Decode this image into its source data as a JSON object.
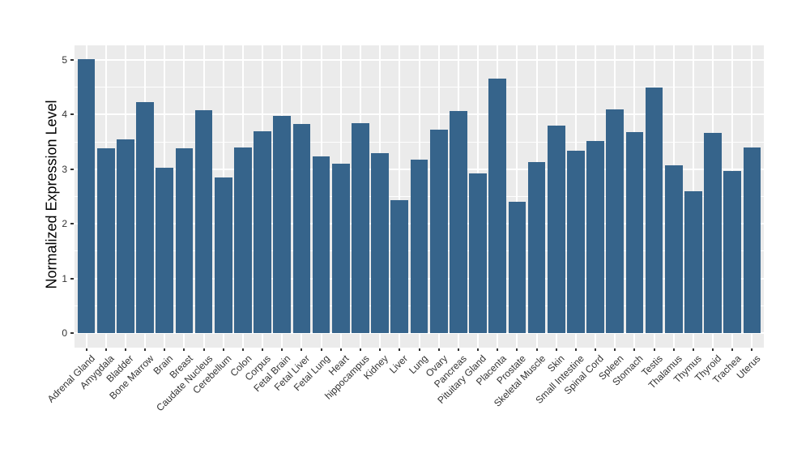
{
  "figure": {
    "background": "#FFFFFF",
    "panel_background": "#EBEBEB",
    "gridline_color": "#FFFFFF",
    "bar_color": "#36648B",
    "tick_mark_color": "#333333",
    "axis_text_color": "#333333",
    "axis_title_color": "#000000"
  },
  "chart_data": {
    "type": "bar",
    "title": "",
    "xlabel": "",
    "ylabel": "Normalized Expression Level",
    "ylim": [
      0,
      5.27
    ],
    "yticks": [
      0,
      1,
      2,
      3,
      4,
      5
    ],
    "yticks_minor": [
      0.5,
      1.5,
      2.5,
      3.5,
      4.5
    ],
    "grid": "white major and minor gridlines on grey panel (ggplot theme_grey)",
    "legend_position": "none",
    "x_tick_label_rotation_deg": 45,
    "categories": [
      "Adrenal Gland",
      "Amygdala",
      "Bladder",
      "Bone Marrow",
      "Brain",
      "Breast",
      "Caudate Nucleus",
      "Cerebellum",
      "Colon",
      "Corpus",
      "Fetal Brain",
      "Fetal Liver",
      "Fetal Lung",
      "Heart",
      "hippocampus",
      "Kidney",
      "Liver",
      "Lung",
      "Ovary",
      "Pancreas",
      "Pituitary Gland",
      "Placenta",
      "Prostate",
      "Skeletal Muscle",
      "Skin",
      "Small Intestine",
      "Spinal Cord",
      "Spleen",
      "Stomach",
      "Testis",
      "Thalamus",
      "Thymus",
      "Thyroid",
      "Trachea",
      "Uterus"
    ],
    "values": [
      5.01,
      3.38,
      3.54,
      4.23,
      3.02,
      3.38,
      4.08,
      2.85,
      3.4,
      3.69,
      3.97,
      3.83,
      3.23,
      3.1,
      3.85,
      3.29,
      2.44,
      3.18,
      3.72,
      4.07,
      2.93,
      4.66,
      2.41,
      3.13,
      3.8,
      3.34,
      3.51,
      4.09,
      3.68,
      4.49,
      3.07,
      2.6,
      3.67,
      2.97,
      3.4
    ]
  }
}
